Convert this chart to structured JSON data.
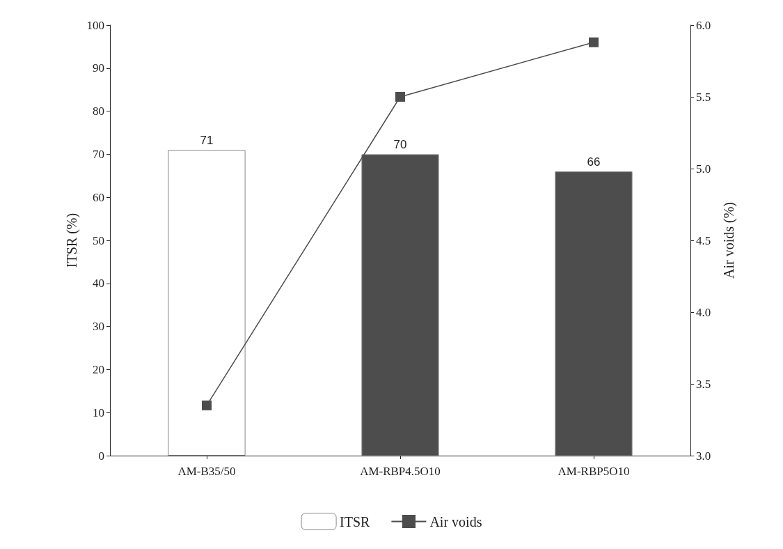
{
  "chart_data": {
    "type": "bar",
    "categories": [
      "AM-B35/50",
      "AM-RBP4.5O10",
      "AM-RBP5O10"
    ],
    "ylabel": "ITSR (%)",
    "y2label": "Air voids (%)",
    "ylim": [
      0,
      100
    ],
    "yticks": [
      0,
      10,
      20,
      30,
      40,
      50,
      60,
      70,
      80,
      90,
      100
    ],
    "y2lim": [
      3.0,
      6.0
    ],
    "y2ticks": [
      {
        "value": 3.0,
        "label": "3.0"
      },
      {
        "value": 3.5,
        "label": "3.5"
      },
      {
        "value": 4.0,
        "label": "4.0"
      },
      {
        "value": 4.5,
        "label": "4.5"
      },
      {
        "value": 5.0,
        "label": "5.0"
      },
      {
        "value": 5.5,
        "label": "5.5"
      },
      {
        "value": 6.0,
        "label": "6.0"
      }
    ],
    "series": [
      {
        "name": "ITSR",
        "colors": [
          "#ffffff",
          "#4d4d4d",
          "#4d4d4d"
        ],
        "color": "#ffffff",
        "values": [
          71,
          70,
          66
        ],
        "data_labels": true
      },
      {
        "name": "Air voids",
        "type": "line",
        "axis": "y2",
        "color": "#4d4d4d",
        "values": [
          3.35,
          5.5,
          5.88
        ],
        "marker": "square",
        "line_style": "solid"
      }
    ],
    "grid": false,
    "legend": "bottom"
  }
}
